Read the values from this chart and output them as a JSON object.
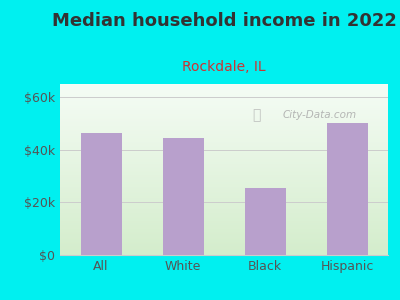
{
  "title": "Median household income in 2022",
  "subtitle": "Rockdale, IL",
  "categories": [
    "All",
    "White",
    "Black",
    "Hispanic"
  ],
  "values": [
    46500,
    44500,
    25500,
    50000
  ],
  "bar_color": "#b8a0cc",
  "ylim": [
    0,
    65000
  ],
  "yticks": [
    0,
    20000,
    40000,
    60000
  ],
  "ytick_labels": [
    "$0",
    "$20k",
    "$40k",
    "$60k"
  ],
  "bg_color": "#00f0f0",
  "plot_bg_top": "#f5fcf5",
  "plot_bg_bottom": "#d4edcc",
  "title_color": "#333333",
  "subtitle_color": "#cc3333",
  "watermark_text": "City-Data.com",
  "watermark_color": "#aaaaaa",
  "title_fontsize": 13,
  "subtitle_fontsize": 10,
  "tick_label_color": "#555555",
  "axis_label_color": "#555555",
  "grid_color": "#cccccc"
}
